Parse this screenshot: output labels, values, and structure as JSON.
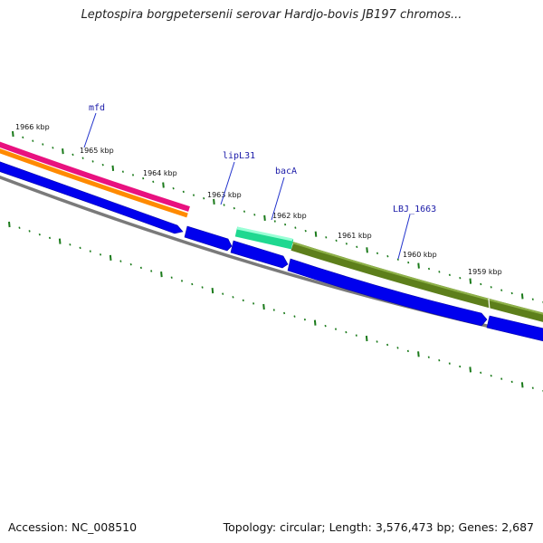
{
  "title": "Leptospira borgpetersenii serovar Hardjo-bovis JB197 chromos...",
  "footer": {
    "accession": "Accession: NC_008510",
    "topology": "Topology: circular; Length: 3,576,473 bp; Genes: 2,687"
  },
  "colors": {
    "forward_cds": "#0000ee",
    "gene_olive": "#6b8e23",
    "gene_teal": "#33ffaa",
    "magenta_band": "#ee1188",
    "orange_band": "#ff8800",
    "backbone": "#808080",
    "tick": "#1a7a1a",
    "label_line": "#2233cc"
  },
  "scale_labels": [
    "1966 kbp",
    "1965 kbp",
    "1964 kbp",
    "1963 kbp",
    "1962 kbp",
    "1961 kbp",
    "1960 kbp",
    "1959 kbp"
  ],
  "genes": [
    {
      "name": "mfd"
    },
    {
      "name": "lipL31"
    },
    {
      "name": "bacA"
    },
    {
      "name": "LBJ_1663"
    }
  ]
}
